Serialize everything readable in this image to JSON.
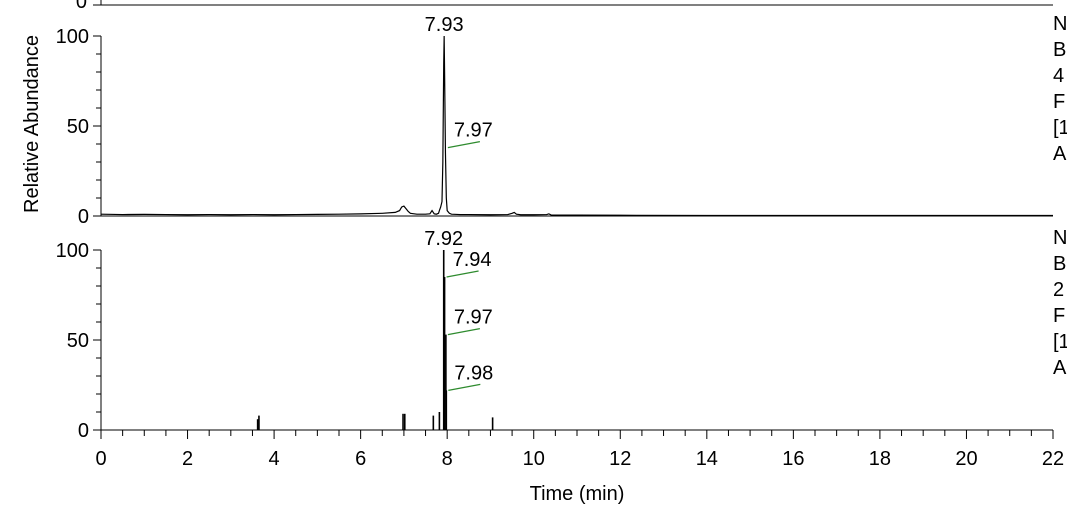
{
  "chart_data": {
    "type": "line",
    "xlabel": "Time (min)",
    "ylabel": "Relative Abundance",
    "xlim": [
      0,
      22
    ],
    "x_ticks": [
      "0",
      "2",
      "4",
      "6",
      "8",
      "10",
      "12",
      "14",
      "16",
      "18",
      "20",
      "22"
    ],
    "panels": [
      {
        "id": "top-partial",
        "ylim": [
          0,
          100
        ],
        "y_ticks": [
          "0"
        ],
        "series": []
      },
      {
        "id": "panel-1",
        "ylim": [
          0,
          100
        ],
        "y_ticks": [
          "0",
          "50",
          "100"
        ],
        "right_labels": [
          "N",
          "B",
          "4",
          "F",
          "[1",
          "A"
        ],
        "annotations": [
          {
            "text": "7.93",
            "x": 7.93,
            "y": 100,
            "type": "apex"
          },
          {
            "text": "7.97",
            "x": 7.97,
            "y": 38,
            "type": "leader"
          }
        ],
        "series": [
          {
            "x": [
              0,
              0.5,
              1,
              1.5,
              2,
              2.5,
              3,
              3.5,
              4,
              4.5,
              5,
              5.5,
              6,
              6.5,
              6.8,
              6.9,
              6.95,
              7.0,
              7.05,
              7.1,
              7.15,
              7.3,
              7.5,
              7.6,
              7.65,
              7.7,
              7.75,
              7.8,
              7.82,
              7.85,
              7.88,
              7.9,
              7.92,
              7.93,
              7.94,
              7.96,
              7.98,
              8.0,
              8.05,
              8.1,
              8.3,
              8.5,
              9.0,
              9.4,
              9.5,
              9.55,
              9.6,
              9.7,
              10.0,
              10.3,
              10.35,
              10.4,
              10.5,
              11,
              12,
              14,
              16,
              18,
              20,
              22
            ],
            "y": [
              1,
              0.8,
              0.9,
              0.8,
              0.7,
              0.8,
              0.7,
              0.8,
              0.7,
              0.8,
              0.9,
              1,
              1.2,
              1.5,
              2,
              3,
              5,
              5.5,
              4,
              2.5,
              1.5,
              1,
              1,
              1.2,
              3,
              1.2,
              1,
              1.5,
              3,
              5,
              8,
              30,
              85,
              100,
              80,
              35,
              10,
              3,
              1.5,
              1,
              0.8,
              0.8,
              0.7,
              0.8,
              1.5,
              2,
              1,
              0.7,
              0.7,
              0.8,
              1.2,
              0.6,
              0.5,
              0.5,
              0.4,
              0.3,
              0.3,
              0.3,
              0.3,
              0.3
            ]
          }
        ]
      },
      {
        "id": "panel-2",
        "ylim": [
          0,
          100
        ],
        "y_ticks": [
          "0",
          "50",
          "100"
        ],
        "right_labels": [
          "N",
          "B",
          "2",
          "F",
          "[1",
          "A"
        ],
        "annotations": [
          {
            "text": "7.92",
            "x": 7.92,
            "y": 100,
            "type": "apex"
          },
          {
            "text": "7.94",
            "x": 7.94,
            "y": 85,
            "type": "leader"
          },
          {
            "text": "7.97",
            "x": 7.97,
            "y": 53,
            "type": "leader"
          },
          {
            "text": "7.98",
            "x": 7.98,
            "y": 22,
            "type": "leader"
          }
        ],
        "series": [
          {
            "spikes": [
              {
                "x": 3.62,
                "y": 6
              },
              {
                "x": 3.65,
                "y": 8
              },
              {
                "x": 6.98,
                "y": 9
              },
              {
                "x": 7.02,
                "y": 9
              },
              {
                "x": 7.68,
                "y": 8
              },
              {
                "x": 7.82,
                "y": 10
              },
              {
                "x": 7.92,
                "y": 100
              },
              {
                "x": 7.94,
                "y": 85
              },
              {
                "x": 7.97,
                "y": 53
              },
              {
                "x": 7.98,
                "y": 22
              },
              {
                "x": 9.05,
                "y": 7
              }
            ]
          }
        ]
      }
    ]
  }
}
